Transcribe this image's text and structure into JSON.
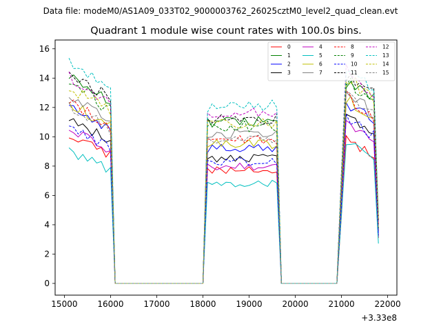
{
  "figure": {
    "suptitle": "Data file: modeM0/AS1A09_033T02_9000003762_26025cztM0_level2_quad_clean.evt"
  },
  "chart_data": {
    "type": "line",
    "title": "Quadrant 1 module wise count rates with 100.0s bins.",
    "xlabel": "",
    "ylabel": "",
    "x_offset_label": "+3.33e8",
    "xlim": [
      14800,
      22200
    ],
    "ylim": [
      -0.8,
      16.6
    ],
    "xticks": [
      15000,
      16000,
      17000,
      18000,
      19000,
      20000,
      21000,
      22000
    ],
    "yticks": [
      0,
      2,
      4,
      6,
      8,
      10,
      12,
      14,
      16
    ],
    "grid": false,
    "legend": {
      "position": "top-right",
      "columns": 4
    },
    "segments": [
      {
        "x_start": 15100,
        "x_end": 16000,
        "behavior": "declining"
      },
      {
        "x_start": 18100,
        "x_end": 19600,
        "behavior": "flat"
      },
      {
        "x_start": 21000,
        "x_end": 21800,
        "behavior": "declining"
      }
    ],
    "gap_value": 0,
    "series": [
      {
        "name": "0",
        "color": "#ff0000",
        "dash": "solid",
        "levels": [
          10.1,
          7.7,
          10.0
        ]
      },
      {
        "name": "1",
        "color": "#008000",
        "dash": "solid",
        "levels": [
          14.2,
          11.0,
          14.0
        ]
      },
      {
        "name": "2",
        "color": "#0000ff",
        "dash": "solid",
        "levels": [
          12.1,
          9.2,
          12.5
        ]
      },
      {
        "name": "3",
        "color": "#000000",
        "dash": "solid",
        "levels": [
          11.3,
          8.5,
          11.8
        ]
      },
      {
        "name": "4",
        "color": "#bf00bf",
        "dash": "solid",
        "levels": [
          10.5,
          8.0,
          11.0
        ]
      },
      {
        "name": "5",
        "color": "#00bfbf",
        "dash": "solid",
        "levels": [
          9.0,
          6.8,
          9.8
        ]
      },
      {
        "name": "6",
        "color": "#bfbf00",
        "dash": "solid",
        "levels": [
          12.4,
          9.5,
          12.8
        ]
      },
      {
        "name": "7",
        "color": "#808080",
        "dash": "solid",
        "levels": [
          13.0,
          10.2,
          13.2
        ]
      },
      {
        "name": "8",
        "color": "#ff0000",
        "dash": "dashed",
        "levels": [
          12.5,
          9.8,
          13.0
        ]
      },
      {
        "name": "9",
        "color": "#008000",
        "dash": "dashed",
        "levels": [
          13.8,
          10.7,
          14.2
        ]
      },
      {
        "name": "10",
        "color": "#0000ff",
        "dash": "dashed",
        "levels": [
          10.8,
          8.3,
          11.5
        ]
      },
      {
        "name": "11",
        "color": "#000000",
        "dash": "dashed",
        "levels": [
          14.5,
          11.2,
          14.6
        ]
      },
      {
        "name": "12",
        "color": "#bf00bf",
        "dash": "dashed",
        "levels": [
          14.0,
          11.6,
          14.8
        ]
      },
      {
        "name": "13",
        "color": "#00bfbf",
        "dash": "dashed",
        "levels": [
          15.2,
          12.1,
          15.1
        ]
      },
      {
        "name": "14",
        "color": "#bfbf00",
        "dash": "dashed",
        "levels": [
          13.5,
          10.9,
          14.4
        ]
      },
      {
        "name": "15",
        "color": "#808080",
        "dash": "dashed",
        "levels": [
          12.2,
          9.9,
          13.3
        ]
      }
    ]
  }
}
